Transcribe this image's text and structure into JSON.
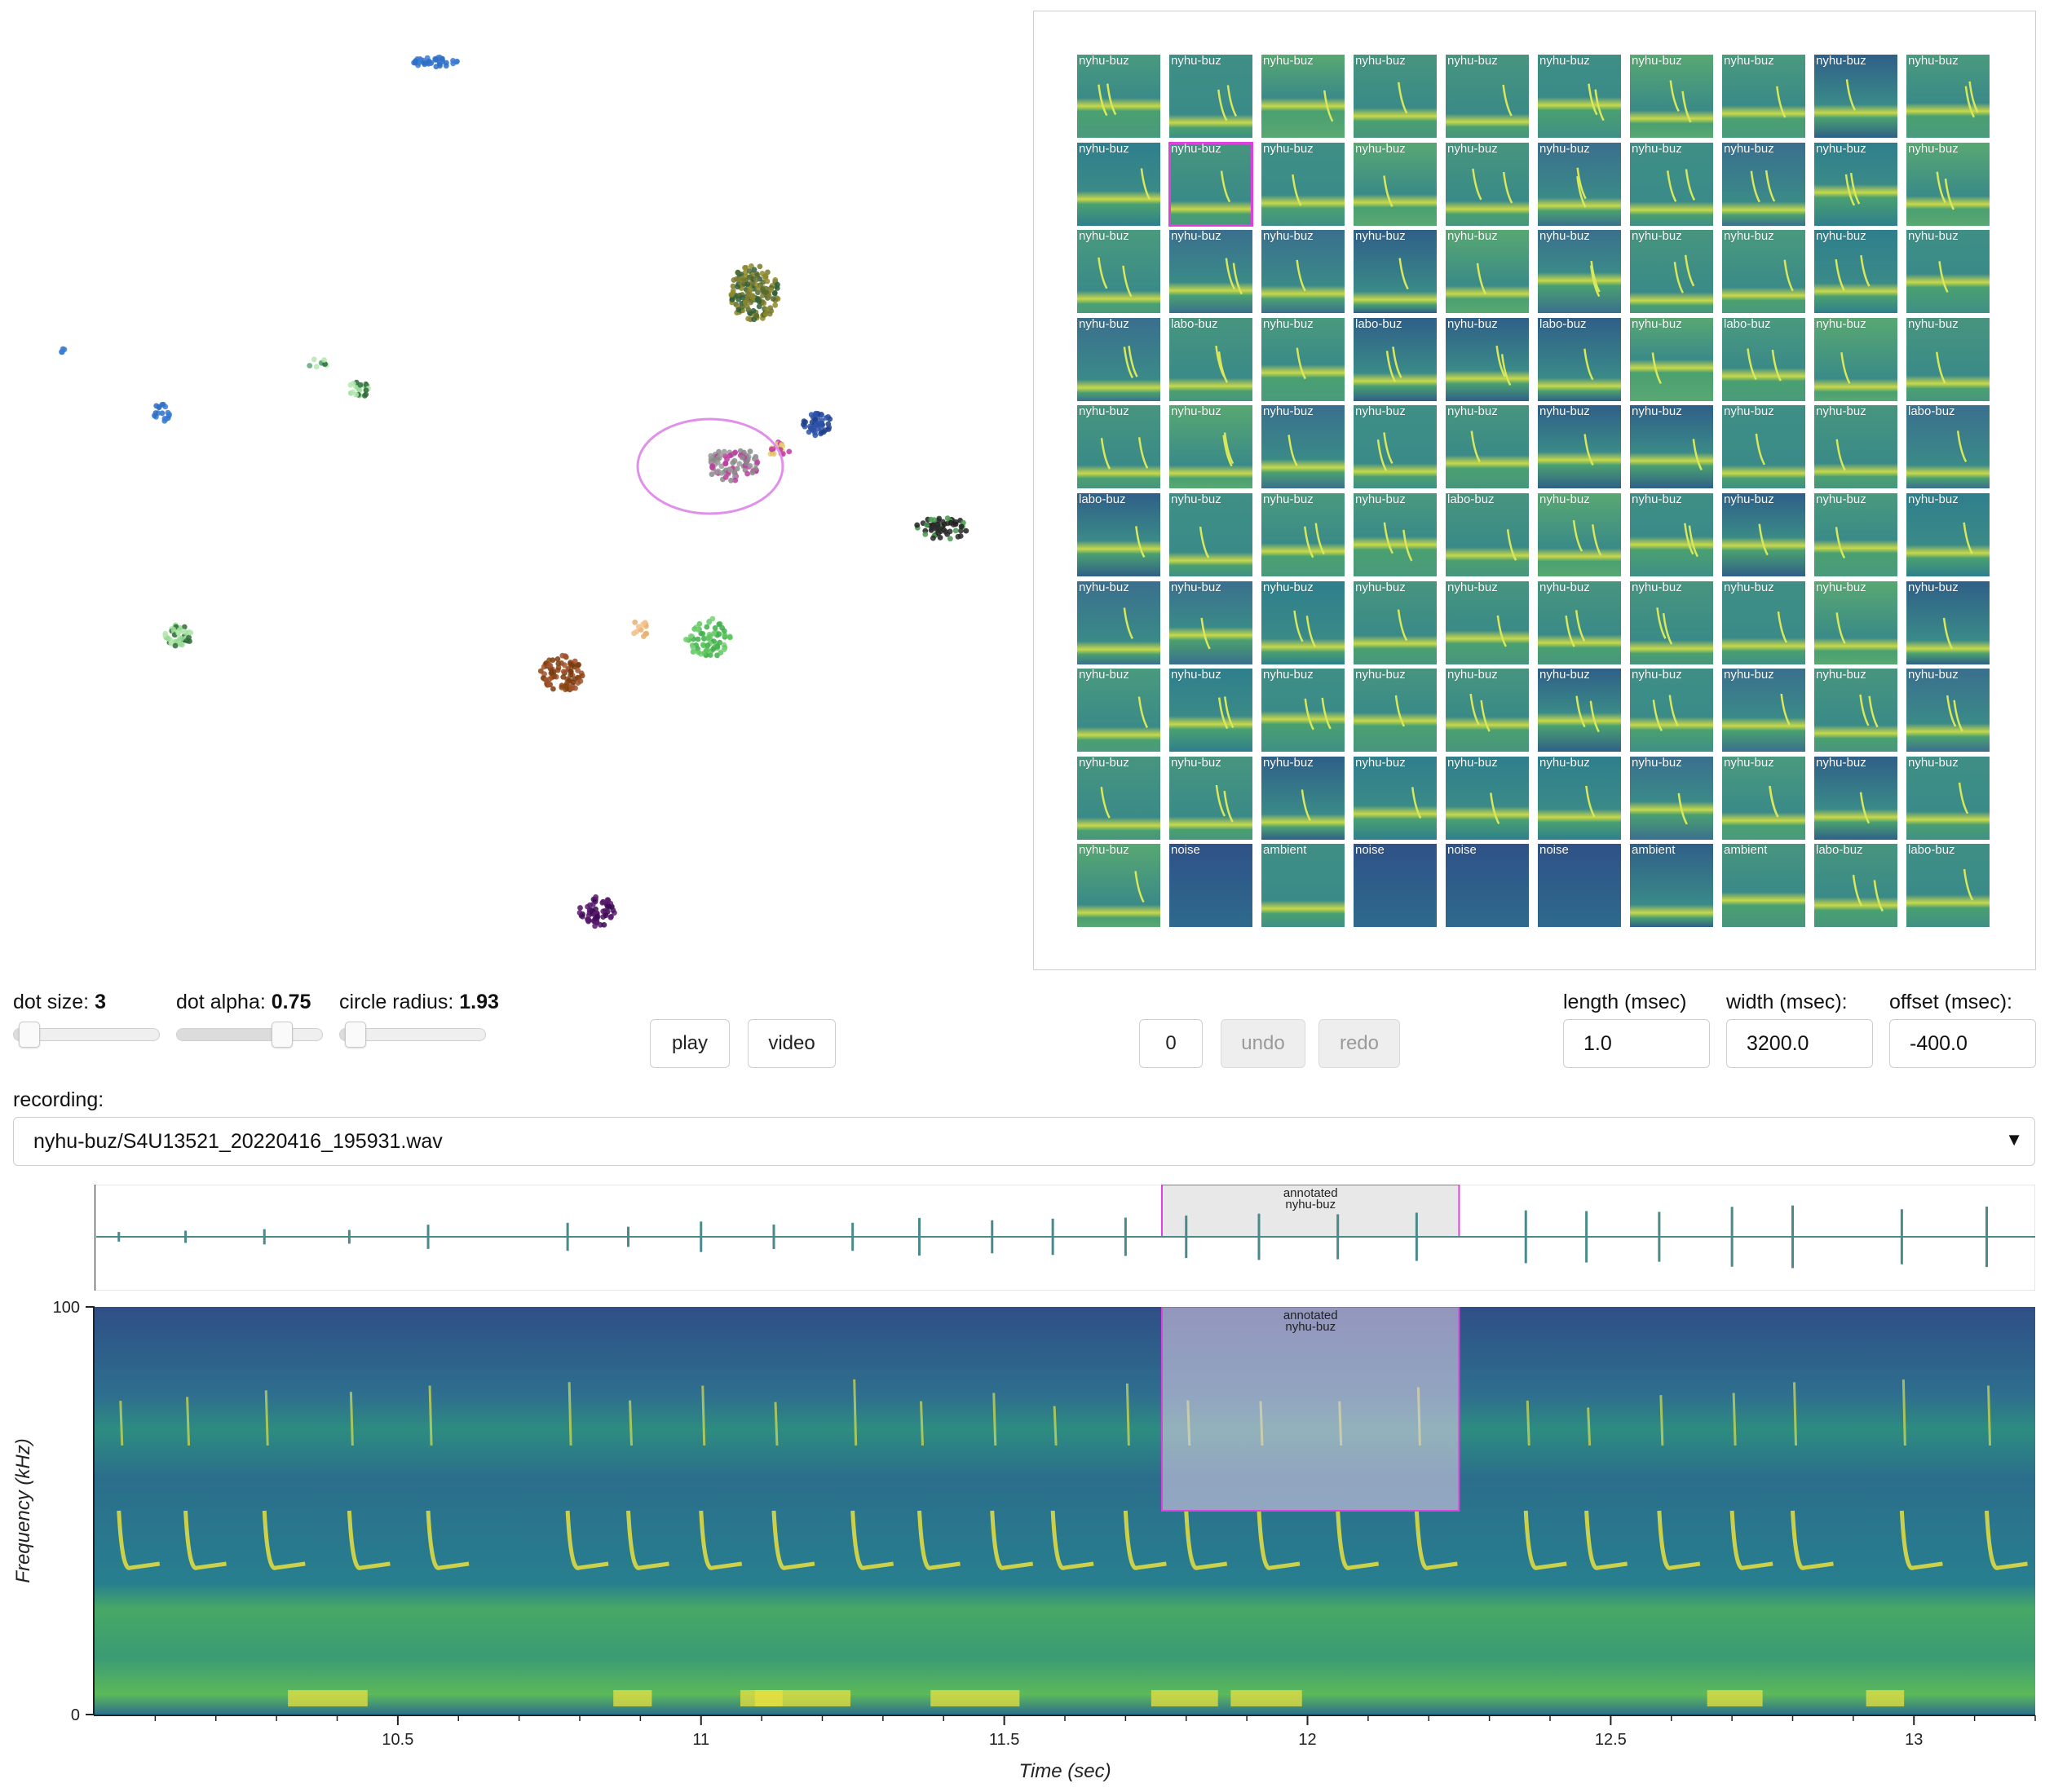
{
  "controls": {
    "dot_size_label": "dot size:",
    "dot_size_value": "3",
    "dot_size_fraction": 0.04,
    "dot_alpha_label": "dot alpha:",
    "dot_alpha_value": "0.75",
    "dot_alpha_fraction": 0.75,
    "circle_radius_label": "circle radius:",
    "circle_radius_value": "1.93",
    "circle_radius_fraction": 0.04,
    "play_label": "play",
    "video_label": "video",
    "counter_value": "0",
    "undo_label": "undo",
    "redo_label": "redo",
    "length_label": "length (msec)",
    "length_value": "1.0",
    "width_label": "width (msec):",
    "width_value": "3200.0",
    "offset_label": "offset (msec):",
    "offset_value": "-400.0"
  },
  "recording": {
    "label": "recording:",
    "selected": "nyhu-buz/S4U13521_20220416_195931.wav"
  },
  "gallery": {
    "rows": [
      [
        "nyhu-buz",
        "nyhu-buz",
        "nyhu-buz",
        "nyhu-buz",
        "nyhu-buz",
        "nyhu-buz",
        "nyhu-buz",
        "nyhu-buz",
        "nyhu-buz",
        "nyhu-buz"
      ],
      [
        "nyhu-buz",
        "nyhu-buz",
        "nyhu-buz",
        "nyhu-buz",
        "nyhu-buz",
        "nyhu-buz",
        "nyhu-buz",
        "nyhu-buz",
        "nyhu-buz",
        "nyhu-buz"
      ],
      [
        "nyhu-buz",
        "nyhu-buz",
        "nyhu-buz",
        "nyhu-buz",
        "nyhu-buz",
        "nyhu-buz",
        "nyhu-buz",
        "nyhu-buz",
        "nyhu-buz",
        "nyhu-buz"
      ],
      [
        "nyhu-buz",
        "labo-buz",
        "nyhu-buz",
        "labo-buz",
        "nyhu-buz",
        "labo-buz",
        "nyhu-buz",
        "labo-buz",
        "nyhu-buz",
        "nyhu-buz"
      ],
      [
        "nyhu-buz",
        "nyhu-buz",
        "nyhu-buz",
        "nyhu-buz",
        "nyhu-buz",
        "nyhu-buz",
        "nyhu-buz",
        "nyhu-buz",
        "nyhu-buz",
        "labo-buz"
      ],
      [
        "labo-buz",
        "nyhu-buz",
        "nyhu-buz",
        "nyhu-buz",
        "labo-buz",
        "nyhu-buz",
        "nyhu-buz",
        "nyhu-buz",
        "nyhu-buz",
        "nyhu-buz"
      ],
      [
        "nyhu-buz",
        "nyhu-buz",
        "nyhu-buz",
        "nyhu-buz",
        "nyhu-buz",
        "nyhu-buz",
        "nyhu-buz",
        "nyhu-buz",
        "nyhu-buz",
        "nyhu-buz"
      ],
      [
        "nyhu-buz",
        "nyhu-buz",
        "nyhu-buz",
        "nyhu-buz",
        "nyhu-buz",
        "nyhu-buz",
        "nyhu-buz",
        "nyhu-buz",
        "nyhu-buz",
        "nyhu-buz"
      ],
      [
        "nyhu-buz",
        "nyhu-buz",
        "nyhu-buz",
        "nyhu-buz",
        "nyhu-buz",
        "nyhu-buz",
        "nyhu-buz",
        "nyhu-buz",
        "nyhu-buz",
        "nyhu-buz"
      ],
      [
        "nyhu-buz",
        "noise",
        "ambient",
        "noise",
        "noise",
        "noise",
        "ambient",
        "ambient",
        "labo-buz",
        "labo-buz"
      ]
    ],
    "selected_row": 1,
    "selected_col": 1,
    "selection_color": "#e040e0"
  },
  "annotation": {
    "label_line1": "annotated",
    "label_line2": "nyhu-buz",
    "start_sec": 11.76,
    "end_sec": 12.25,
    "freq_top_khz": 100,
    "freq_bottom_khz": 50,
    "color": "#e040e0"
  },
  "chart_data": {
    "type": "scatter",
    "x_range_sec": [
      10.0,
      13.2
    ],
    "x_ticks": [
      "10.5",
      "11",
      "11.5",
      "12",
      "12.5",
      "13"
    ],
    "x_tick_values": [
      10.5,
      11.0,
      11.5,
      12.0,
      12.5,
      13.0
    ],
    "xlabel": "Time (sec)",
    "ylabel": "Frequency (kHz)",
    "y_ticks": [
      "0",
      "100"
    ],
    "y_tick_values": [
      0,
      100
    ],
    "ylim": [
      0,
      100
    ],
    "call_times_sec": [
      10.04,
      10.15,
      10.28,
      10.42,
      10.55,
      10.78,
      10.88,
      11.0,
      11.12,
      11.25,
      11.36,
      11.48,
      11.58,
      11.7,
      11.8,
      11.92,
      12.05,
      12.18,
      12.36,
      12.46,
      12.58,
      12.7,
      12.8,
      12.98,
      13.12
    ],
    "accent_color": "#4a8a8c"
  }
}
